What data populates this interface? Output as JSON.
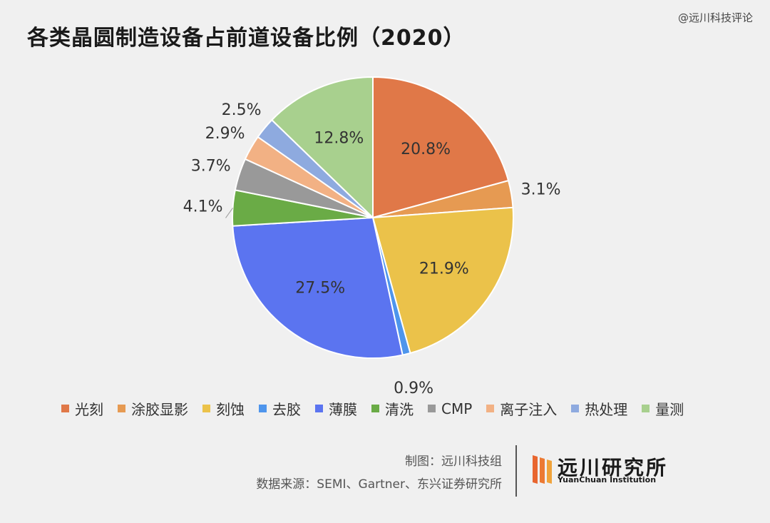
{
  "header": {
    "title": "各类晶圆制造设备占前道设备比例（2020）",
    "watermark": "@远川科技评论"
  },
  "chart_data": {
    "type": "pie",
    "title": "各类晶圆制造设备占前道设备比例（2020）",
    "start": "12 o'clock, clockwise",
    "slices": [
      {
        "label": "光刻",
        "value": 20.8,
        "display": "20.8%",
        "color": "#e07848"
      },
      {
        "label": "涂胶显影",
        "value": 3.1,
        "display": "3.1%",
        "color": "#e69a52"
      },
      {
        "label": "刻蚀",
        "value": 21.9,
        "display": "21.9%",
        "color": "#ebc24a"
      },
      {
        "label": "去胶",
        "value": 0.9,
        "display": "0.9%",
        "color": "#4e95ec"
      },
      {
        "label": "薄膜",
        "value": 27.5,
        "display": "27.5%",
        "color": "#5b74f0"
      },
      {
        "label": "清洗",
        "value": 4.1,
        "display": "4.1%",
        "color": "#6aab46"
      },
      {
        "label": "CMP",
        "value": 3.7,
        "display": "3.7%",
        "color": "#999999"
      },
      {
        "label": "离子注入",
        "value": 2.9,
        "display": "2.9%",
        "color": "#f2b184"
      },
      {
        "label": "热处理",
        "value": 2.5,
        "display": "2.5%",
        "color": "#8eaadf"
      },
      {
        "label": "量测",
        "value": 12.8,
        "display": "12.8%",
        "color": "#a8d08e"
      }
    ],
    "legend_position": "bottom"
  },
  "footer": {
    "credit_line1": "制图：远川科技组",
    "credit_line2": "数据来源：SEMI、Gartner、东兴证券研究所",
    "logo_cn": "远川研究所",
    "logo_en": "YuanChuan Institution",
    "logo_colors": [
      "#e8662f",
      "#f0a33a"
    ]
  }
}
